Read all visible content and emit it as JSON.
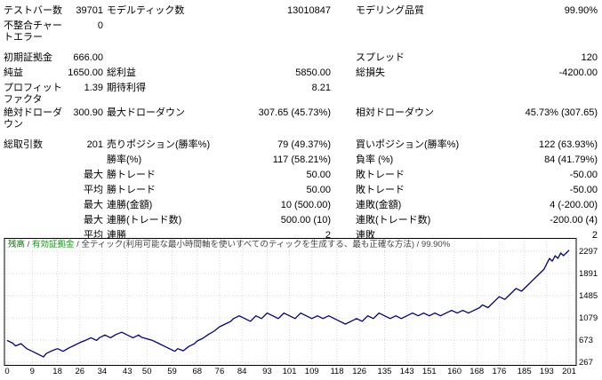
{
  "stats": {
    "rows": [
      [
        "テストバー数",
        "39701",
        "モデルティック数",
        "13010847",
        "モデリング品質",
        "99.90%"
      ],
      [
        "不整合チャートエラー",
        "0",
        "",
        "",
        "",
        ""
      ],
      [
        "初期証拠金",
        "666.00",
        "",
        "",
        "スプレッド",
        "120"
      ],
      [
        "純益",
        "1650.00",
        "総利益",
        "5850.00",
        "総損失",
        "-4200.00"
      ],
      [
        "プロフィットファクタ",
        "1.39",
        "期待利得",
        "8.21",
        "",
        ""
      ],
      [
        "絶対ドローダウン",
        "300.90",
        "最大ドローダウン",
        "307.65 (45.73%)",
        "相対ドローダウン",
        "45.73% (307.65)"
      ],
      [
        "総取引数",
        "201",
        "売りポジション(勝率%)",
        "79 (49.37%)",
        "買いポジション(勝率%)",
        "122 (63.93%)"
      ],
      [
        "",
        "",
        "勝率(%)",
        "117 (58.21%)",
        "負率 (%)",
        "84 (41.79%)"
      ],
      [
        "",
        "最大",
        "勝トレード",
        "50.00",
        "敗トレード",
        "-50.00"
      ],
      [
        "",
        "平均",
        "勝トレード",
        "50.00",
        "敗トレード",
        "-50.00"
      ],
      [
        "",
        "最大",
        "連勝(金額)",
        "10 (500.00)",
        "連敗(金額)",
        "4 (-200.00)"
      ],
      [
        "",
        "最大",
        "連勝(トレード数)",
        "500.00 (10)",
        "連敗(トレード数)",
        "-200.00 (4)"
      ],
      [
        "",
        "平均",
        "連勝",
        "2",
        "連敗",
        "2"
      ]
    ]
  },
  "chart_data": {
    "type": "line",
    "title": "残高 / 有効証拠金 / 全ティック(利用可能な最小時間軸を使いすべてのティックを生成する、最も正確な方法) / 99.90%",
    "legend_segments": [
      {
        "text": "残高",
        "color": "#007000"
      },
      {
        "text": " / ",
        "color": "#444444"
      },
      {
        "text": "有効証拠金",
        "color": "#00A000"
      },
      {
        "text": " / 全ティック(利用可能な最小時間軸を使いすべてのティックを生成する、最も正確な方法) / 99.90%",
        "color": "#444444"
      }
    ],
    "xlabel": "",
    "ylabel": "",
    "xlim": [
      0,
      201
    ],
    "ylim": [
      218,
      2540
    ],
    "grid": true,
    "x_ticks": [
      0,
      9,
      18,
      26,
      34,
      43,
      50,
      59,
      68,
      76,
      84,
      93,
      101,
      109,
      118,
      126,
      135,
      143,
      151,
      160,
      168,
      176,
      185,
      193,
      201
    ],
    "y_ticks": [
      267,
      673,
      1079,
      1485,
      1891,
      2297
    ],
    "series": [
      {
        "name": "残高",
        "color": "#000080",
        "points": [
          [
            0,
            666
          ],
          [
            2,
            616
          ],
          [
            3,
            566
          ],
          [
            5,
            606
          ],
          [
            7,
            516
          ],
          [
            9,
            466
          ],
          [
            11,
            416
          ],
          [
            13,
            366
          ],
          [
            14,
            426
          ],
          [
            16,
            476
          ],
          [
            18,
            516
          ],
          [
            20,
            466
          ],
          [
            22,
            526
          ],
          [
            24,
            576
          ],
          [
            26,
            626
          ],
          [
            28,
            666
          ],
          [
            30,
            716
          ],
          [
            32,
            666
          ],
          [
            33,
            716
          ],
          [
            35,
            766
          ],
          [
            37,
            716
          ],
          [
            39,
            776
          ],
          [
            41,
            816
          ],
          [
            43,
            766
          ],
          [
            45,
            716
          ],
          [
            47,
            766
          ],
          [
            48,
            726
          ],
          [
            50,
            696
          ],
          [
            52,
            666
          ],
          [
            54,
            616
          ],
          [
            56,
            566
          ],
          [
            58,
            516
          ],
          [
            60,
            466
          ],
          [
            61,
            516
          ],
          [
            63,
            476
          ],
          [
            65,
            556
          ],
          [
            67,
            606
          ],
          [
            68,
            656
          ],
          [
            70,
            706
          ],
          [
            72,
            776
          ],
          [
            74,
            836
          ],
          [
            76,
            916
          ],
          [
            78,
            966
          ],
          [
            80,
            1016
          ],
          [
            81,
            1066
          ],
          [
            83,
            1116
          ],
          [
            85,
            1066
          ],
          [
            87,
            1016
          ],
          [
            89,
            1116
          ],
          [
            91,
            1066
          ],
          [
            93,
            1166
          ],
          [
            95,
            1116
          ],
          [
            97,
            1066
          ],
          [
            99,
            1166
          ],
          [
            101,
            1116
          ],
          [
            103,
            1066
          ],
          [
            105,
            1166
          ],
          [
            107,
            1116
          ],
          [
            109,
            1066
          ],
          [
            111,
            1116
          ],
          [
            113,
            1066
          ],
          [
            115,
            1116
          ],
          [
            117,
            1066
          ],
          [
            119,
            1016
          ],
          [
            121,
            966
          ],
          [
            123,
            1016
          ],
          [
            125,
            1066
          ],
          [
            127,
            1016
          ],
          [
            129,
            1116
          ],
          [
            131,
            1066
          ],
          [
            133,
            1166
          ],
          [
            135,
            1116
          ],
          [
            137,
            1066
          ],
          [
            139,
            1116
          ],
          [
            141,
            1066
          ],
          [
            143,
            1116
          ],
          [
            145,
            1166
          ],
          [
            147,
            1116
          ],
          [
            149,
            1166
          ],
          [
            151,
            1116
          ],
          [
            153,
            1166
          ],
          [
            155,
            1116
          ],
          [
            157,
            1166
          ],
          [
            159,
            1216
          ],
          [
            161,
            1166
          ],
          [
            163,
            1216
          ],
          [
            165,
            1166
          ],
          [
            167,
            1216
          ],
          [
            169,
            1266
          ],
          [
            170,
            1316
          ],
          [
            172,
            1266
          ],
          [
            174,
            1366
          ],
          [
            176,
            1466
          ],
          [
            178,
            1416
          ],
          [
            180,
            1516
          ],
          [
            182,
            1616
          ],
          [
            184,
            1566
          ],
          [
            186,
            1666
          ],
          [
            188,
            1766
          ],
          [
            190,
            1866
          ],
          [
            192,
            1966
          ],
          [
            193,
            2066
          ],
          [
            194,
            2166
          ],
          [
            195,
            2116
          ],
          [
            196,
            2216
          ],
          [
            197,
            2166
          ],
          [
            198,
            2266
          ],
          [
            199,
            2216
          ],
          [
            200,
            2266
          ],
          [
            201,
            2316
          ]
        ]
      }
    ]
  }
}
